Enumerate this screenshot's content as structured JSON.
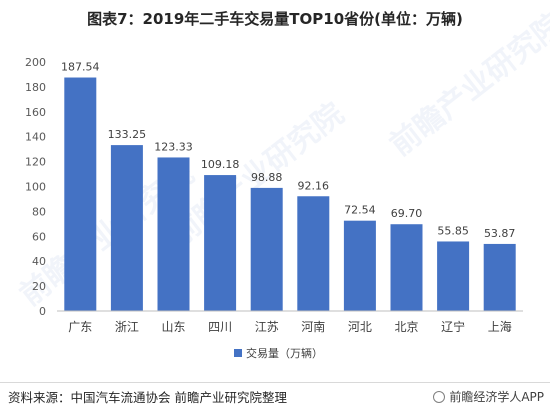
{
  "title": "图表7：2019年二手车交易量TOP10省份(单位：万辆)",
  "chart_data": {
    "type": "bar",
    "title": "图表7：2019年二手车交易量TOP10省份(单位：万辆)",
    "categories": [
      "广东",
      "浙江",
      "山东",
      "四川",
      "江苏",
      "河南",
      "河北",
      "北京",
      "辽宁",
      "上海"
    ],
    "series": [
      {
        "name": "交易量（万辆）",
        "values": [
          187.54,
          133.25,
          123.33,
          109.18,
          98.88,
          92.16,
          72.54,
          69.7,
          55.85,
          53.87
        ],
        "color": "#4472C4"
      }
    ],
    "ylim": [
      0,
      200
    ],
    "ytick_step": 20,
    "grid": false,
    "legend": "bottom-center",
    "data_labels": true
  },
  "source": "资料来源：中国汽车流通协会 前瞻产业研究院整理",
  "credit": "前瞻经济学人APP",
  "watermark": "前瞻产业研究院"
}
